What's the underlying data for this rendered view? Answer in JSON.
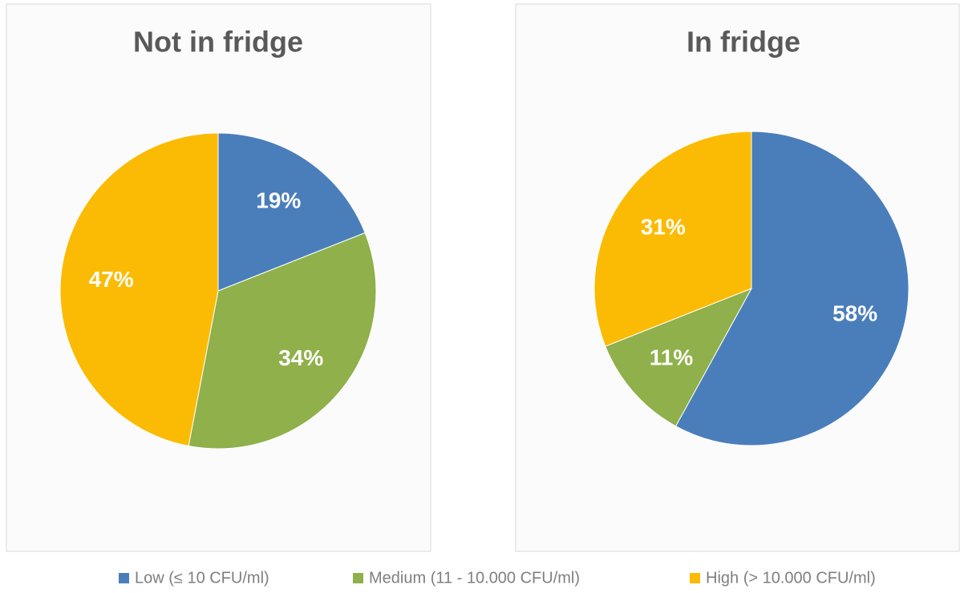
{
  "chart_data": [
    {
      "type": "pie",
      "title": "Not in fridge",
      "values": [
        19,
        34,
        47
      ],
      "value_labels": [
        "19%",
        "34%",
        "47%"
      ]
    },
    {
      "type": "pie",
      "title": "In fridge",
      "values": [
        58,
        11,
        31
      ],
      "value_labels": [
        "58%",
        "11%",
        "31%"
      ]
    }
  ],
  "legend": {
    "categories": [
      "Low (≤ 10 CFU/ml)",
      "Medium (11 - 10.000 CFU/ml)",
      "High (> 10.000 CFU/ml)"
    ],
    "colors": [
      "#4a7ebb",
      "#8fb04a",
      "#fbbb04"
    ]
  }
}
